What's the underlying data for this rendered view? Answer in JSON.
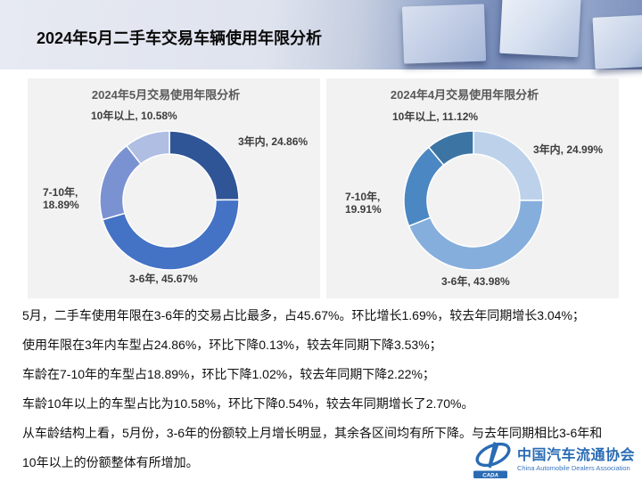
{
  "header": {
    "title": "2024年5月二手车交易车辆使用年限分析"
  },
  "chart_data": [
    {
      "type": "pie",
      "donut": true,
      "title": "2024年5月交易使用年限分析",
      "categories": [
        "3年内",
        "3-6年",
        "7-10年",
        "10年以上"
      ],
      "values": [
        24.86,
        45.67,
        18.89,
        10.58
      ],
      "colors": [
        "#2F5597",
        "#4472C4",
        "#7B92D2",
        "#AFBEE2"
      ],
      "start_angle_deg": 0,
      "direction": "clockwise",
      "labels": [
        "10年以上, 10.58%",
        "3年内, 24.86%",
        "7-10年,\n18.89%",
        "3-6年, 45.67%"
      ]
    },
    {
      "type": "pie",
      "donut": true,
      "title": "2024年4月交易使用年限分析",
      "categories": [
        "3年内",
        "3-6年",
        "7-10年",
        "10年以上"
      ],
      "values": [
        24.99,
        43.98,
        19.91,
        11.12
      ],
      "colors": [
        "#BDD2EA",
        "#85AEDC",
        "#4B87C3",
        "#3C74A4"
      ],
      "start_angle_deg": 0,
      "direction": "clockwise",
      "labels": [
        "10年以上, 11.12%",
        "3年内, 24.99%",
        "7-10年,\n19.91%",
        "3-6年, 43.98%"
      ]
    }
  ],
  "body": {
    "lines": [
      "5月，二手车使用年限在3-6年的交易占比最多，占45.67%。环比增长1.69%，较去年同期增长3.04%；",
      "使用年限在3年内车型占24.86%，环比下降0.13%，较去年同期下降3.53%；",
      "车龄在7-10年的车型占18.89%，环比下降1.02%，较去年同期下降2.22%；",
      "车龄10年以上的车型占比为10.58%，环比下降0.54%，较去年同期增长了2.70%。",
      "从车龄结构上看，5月份，3-6年的份额较上月增长明显，其余各区间均有所下降。与去年同期相比3-6年和",
      "10年以上的份额整体有所增加。"
    ]
  },
  "logo": {
    "cn": "中国汽车流通协会",
    "en": "China Automobile Dealers Association",
    "badge": "CADA",
    "color": "#2A6BB4"
  }
}
